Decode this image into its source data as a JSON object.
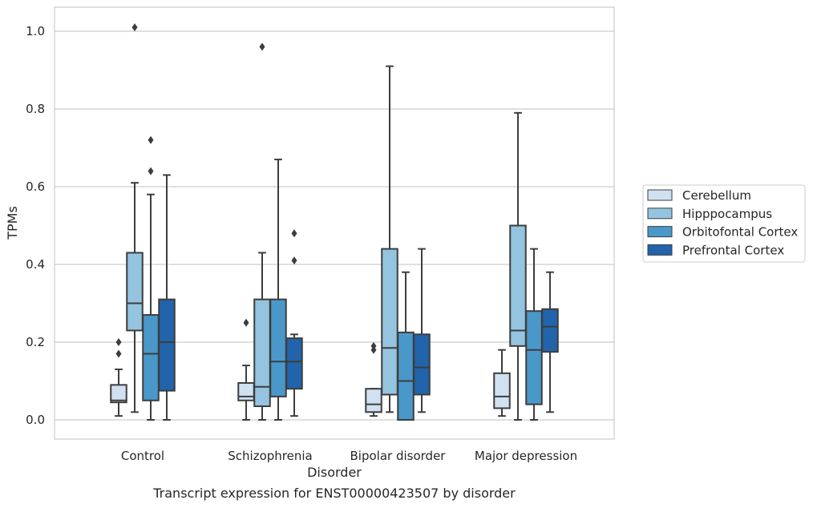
{
  "figure_caption": "Transcript expression for ENST00000423507 by disorder",
  "chart_data": {
    "type": "box",
    "title": "",
    "xlabel": "Disorder",
    "ylabel": "TPMs",
    "ylim": [
      -0.05,
      1.06
    ],
    "yticks": [
      0.0,
      0.2,
      0.4,
      0.6,
      0.8,
      1.0
    ],
    "ytick_labels": [
      "0.0",
      "0.2",
      "0.4",
      "0.6",
      "0.8",
      "1.0"
    ],
    "grid": true,
    "legend_position": "right, outside plot",
    "categories": [
      "Control",
      "Schizophrenia",
      "Bipolar disorder",
      "Major depression"
    ],
    "series": [
      {
        "name": "Cerebellum",
        "color": "#d0e1f2",
        "boxes": [
          {
            "whisker_low": 0.01,
            "q1": 0.045,
            "median": 0.05,
            "q3": 0.09,
            "whisker_high": 0.13,
            "outliers": [
              0.17,
              0.2
            ]
          },
          {
            "whisker_low": 0.0,
            "q1": 0.05,
            "median": 0.06,
            "q3": 0.095,
            "whisker_high": 0.14,
            "outliers": [
              0.25
            ]
          },
          {
            "whisker_low": 0.01,
            "q1": 0.02,
            "median": 0.04,
            "q3": 0.08,
            "whisker_high": 0.08,
            "outliers": [
              0.18,
              0.19
            ]
          },
          {
            "whisker_low": 0.01,
            "q1": 0.03,
            "median": 0.06,
            "q3": 0.12,
            "whisker_high": 0.18,
            "outliers": []
          }
        ]
      },
      {
        "name": "Hipppocampus",
        "color": "#94c4df",
        "boxes": [
          {
            "whisker_low": 0.02,
            "q1": 0.23,
            "median": 0.3,
            "q3": 0.43,
            "whisker_high": 0.61,
            "outliers": [
              1.01
            ]
          },
          {
            "whisker_low": 0.0,
            "q1": 0.035,
            "median": 0.085,
            "q3": 0.31,
            "whisker_high": 0.43,
            "outliers": [
              0.96
            ]
          },
          {
            "whisker_low": 0.02,
            "q1": 0.065,
            "median": 0.185,
            "q3": 0.44,
            "whisker_high": 0.91,
            "outliers": []
          },
          {
            "whisker_low": 0.0,
            "q1": 0.19,
            "median": 0.23,
            "q3": 0.5,
            "whisker_high": 0.79,
            "outliers": []
          }
        ]
      },
      {
        "name": "Orbitofontal Cortex",
        "color": "#4a98c9",
        "boxes": [
          {
            "whisker_low": 0.0,
            "q1": 0.05,
            "median": 0.17,
            "q3": 0.27,
            "whisker_high": 0.58,
            "outliers": [
              0.64,
              0.72
            ]
          },
          {
            "whisker_low": 0.0,
            "q1": 0.06,
            "median": 0.15,
            "q3": 0.31,
            "whisker_high": 0.67,
            "outliers": []
          },
          {
            "whisker_low": 0.0,
            "q1": 0.0,
            "median": 0.1,
            "q3": 0.225,
            "whisker_high": 0.38,
            "outliers": []
          },
          {
            "whisker_low": 0.0,
            "q1": 0.04,
            "median": 0.18,
            "q3": 0.28,
            "whisker_high": 0.44,
            "outliers": []
          }
        ]
      },
      {
        "name": "Prefrontal Cortex",
        "color": "#2164ab",
        "boxes": [
          {
            "whisker_low": 0.0,
            "q1": 0.075,
            "median": 0.2,
            "q3": 0.31,
            "whisker_high": 0.63,
            "outliers": []
          },
          {
            "whisker_low": 0.01,
            "q1": 0.08,
            "median": 0.15,
            "q3": 0.21,
            "whisker_high": 0.22,
            "outliers": [
              0.41,
              0.48
            ]
          },
          {
            "whisker_low": 0.02,
            "q1": 0.065,
            "median": 0.135,
            "q3": 0.22,
            "whisker_high": 0.44,
            "outliers": []
          },
          {
            "whisker_low": 0.02,
            "q1": 0.175,
            "median": 0.24,
            "q3": 0.285,
            "whisker_high": 0.38,
            "outliers": []
          }
        ]
      }
    ]
  }
}
